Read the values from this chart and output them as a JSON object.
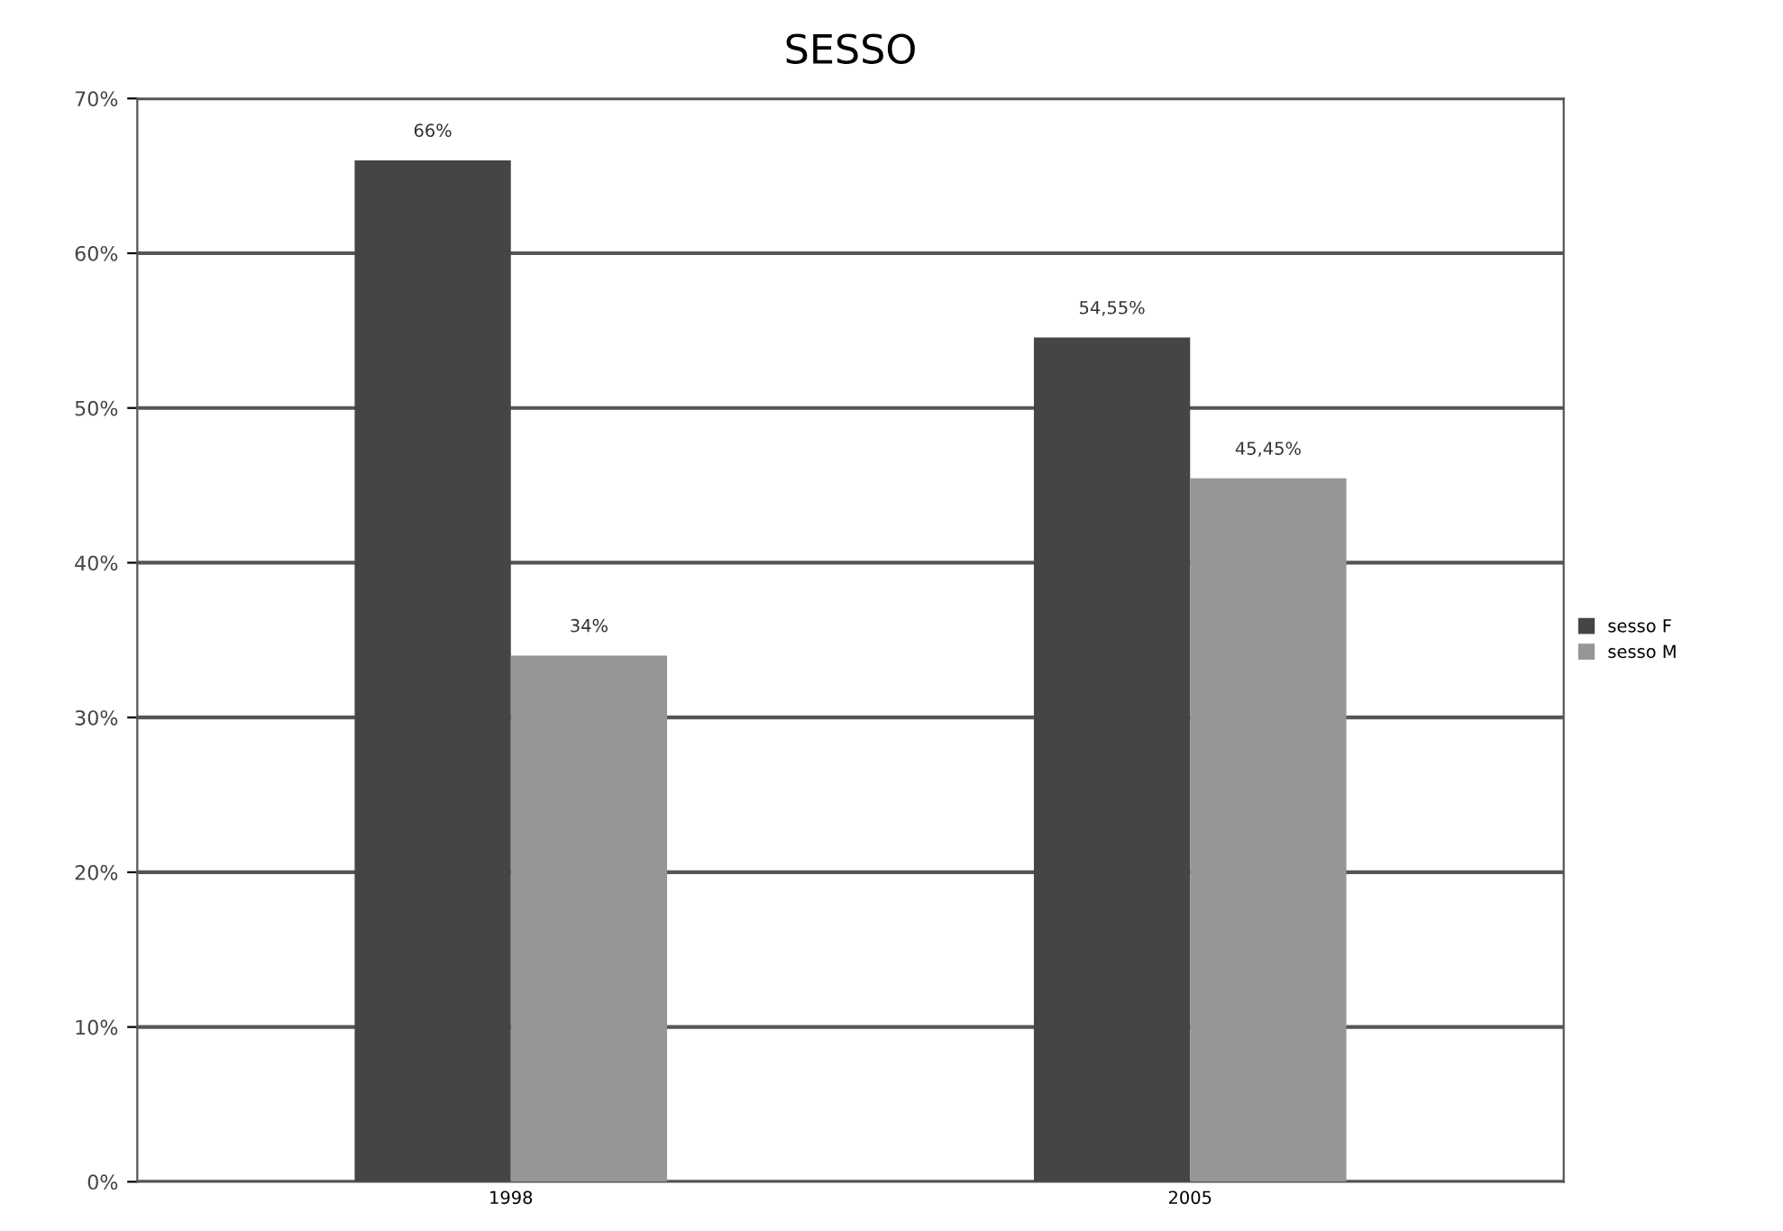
{
  "chart_data": {
    "type": "bar",
    "title": "SESSO",
    "categories": [
      "1998",
      "2005"
    ],
    "series": [
      {
        "name": "sesso F",
        "color": "#454545",
        "values": [
          66,
          54.55
        ],
        "value_labels": [
          "66%",
          "54,55%"
        ]
      },
      {
        "name": "sesso M",
        "color": "#969696",
        "values": [
          34,
          45.45
        ],
        "value_labels": [
          "34%",
          "45,45%"
        ]
      }
    ],
    "ylim": [
      0,
      70
    ],
    "yticks": [
      {
        "value": 0,
        "label": "0%"
      },
      {
        "value": 10,
        "label": "10%"
      },
      {
        "value": 20,
        "label": "20%"
      },
      {
        "value": 30,
        "label": "30%"
      },
      {
        "value": 40,
        "label": "40%"
      },
      {
        "value": 50,
        "label": "50%"
      },
      {
        "value": 60,
        "label": "60%"
      },
      {
        "value": 70,
        "label": "70%"
      }
    ],
    "grid": "y",
    "legend": "right"
  }
}
